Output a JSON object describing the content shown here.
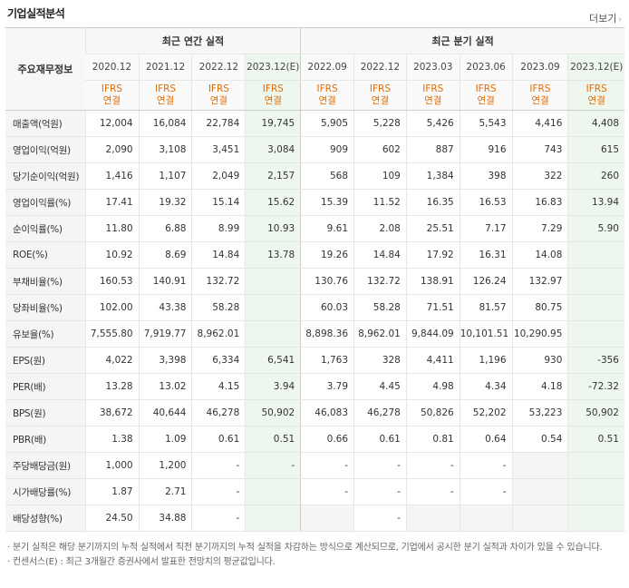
{
  "header": {
    "title": "기업실적분석",
    "more_label": "더보기"
  },
  "table": {
    "label_header": "주요재무정보",
    "annual_group": "최근 연간 실적",
    "quarter_group": "최근 분기 실적",
    "periods": [
      "2020.12",
      "2021.12",
      "2022.12",
      "2023.12(E)",
      "2022.09",
      "2022.12",
      "2023.03",
      "2023.06",
      "2023.09",
      "2023.12(E)"
    ],
    "basis_line1": "IFRS",
    "basis_line2": "연결",
    "rows": [
      {
        "label": "매출액(억원)",
        "values": [
          "12,004",
          "16,084",
          "22,784",
          "19,745",
          "5,905",
          "5,228",
          "5,426",
          "5,543",
          "4,416",
          "4,408"
        ]
      },
      {
        "label": "영업이익(억원)",
        "values": [
          "2,090",
          "3,108",
          "3,451",
          "3,084",
          "909",
          "602",
          "887",
          "916",
          "743",
          "615"
        ]
      },
      {
        "label": "당기순이익(억원)",
        "values": [
          "1,416",
          "1,107",
          "2,049",
          "2,157",
          "568",
          "109",
          "1,384",
          "398",
          "322",
          "260"
        ]
      },
      {
        "label": "영업이익률(%)",
        "values": [
          "17.41",
          "19.32",
          "15.14",
          "15.62",
          "15.39",
          "11.52",
          "16.35",
          "16.53",
          "16.83",
          "13.94"
        ]
      },
      {
        "label": "순이익률(%)",
        "values": [
          "11.80",
          "6.88",
          "8.99",
          "10.93",
          "9.61",
          "2.08",
          "25.51",
          "7.17",
          "7.29",
          "5.90"
        ]
      },
      {
        "label": "ROE(%)",
        "values": [
          "10.92",
          "8.69",
          "14.84",
          "13.78",
          "19.26",
          "14.84",
          "17.92",
          "16.31",
          "14.08",
          ""
        ]
      },
      {
        "label": "부채비율(%)",
        "values": [
          "160.53",
          "140.91",
          "132.72",
          "",
          "130.76",
          "132.72",
          "138.91",
          "126.24",
          "132.97",
          ""
        ]
      },
      {
        "label": "당좌비율(%)",
        "values": [
          "102.00",
          "43.38",
          "58.28",
          "",
          "60.03",
          "58.28",
          "71.51",
          "81.57",
          "80.75",
          ""
        ]
      },
      {
        "label": "유보율(%)",
        "values": [
          "7,555.80",
          "7,919.77",
          "8,962.01",
          "",
          "8,898.36",
          "8,962.01",
          "9,844.09",
          "10,101.51",
          "10,290.95",
          ""
        ]
      },
      {
        "label": "EPS(원)",
        "values": [
          "4,022",
          "3,398",
          "6,334",
          "6,541",
          "1,763",
          "328",
          "4,411",
          "1,196",
          "930",
          "-356"
        ]
      },
      {
        "label": "PER(배)",
        "values": [
          "13.28",
          "13.02",
          "4.15",
          "3.94",
          "3.79",
          "4.45",
          "4.98",
          "4.34",
          "4.18",
          "-72.32"
        ]
      },
      {
        "label": "BPS(원)",
        "values": [
          "38,672",
          "40,644",
          "46,278",
          "50,902",
          "46,083",
          "46,278",
          "50,826",
          "52,202",
          "53,223",
          "50,902"
        ]
      },
      {
        "label": "PBR(배)",
        "values": [
          "1.38",
          "1.09",
          "0.61",
          "0.51",
          "0.66",
          "0.61",
          "0.81",
          "0.64",
          "0.54",
          "0.51"
        ]
      },
      {
        "label": "주당배당금(원)",
        "values": [
          "1,000",
          "1,200",
          "-",
          "-",
          "-",
          "-",
          "-",
          "-",
          "",
          ""
        ]
      },
      {
        "label": "시가배당률(%)",
        "values": [
          "1.87",
          "2.71",
          "-",
          "",
          "-",
          "-",
          "-",
          "-",
          "",
          ""
        ]
      },
      {
        "label": "배당성향(%)",
        "values": [
          "24.50",
          "34.88",
          "-",
          "",
          "",
          "-",
          "",
          "",
          "",
          ""
        ]
      }
    ]
  },
  "notes": [
    "분기 실적은 해당 분기까지의 누적 실적에서 직전 분기까지의 누적 실적을 차감하는 방식으로 계산되므로, 기업에서 공시한 분기 실적과 차이가 있을 수 있습니다.",
    "컨센서스(E) : 최근 3개월간 증권사에서 발표한 전망치의 평균값입니다."
  ],
  "colors": {
    "basis": "#e06b00",
    "negative": "#d83a3a",
    "estimate_bg": "#eef7ee"
  }
}
